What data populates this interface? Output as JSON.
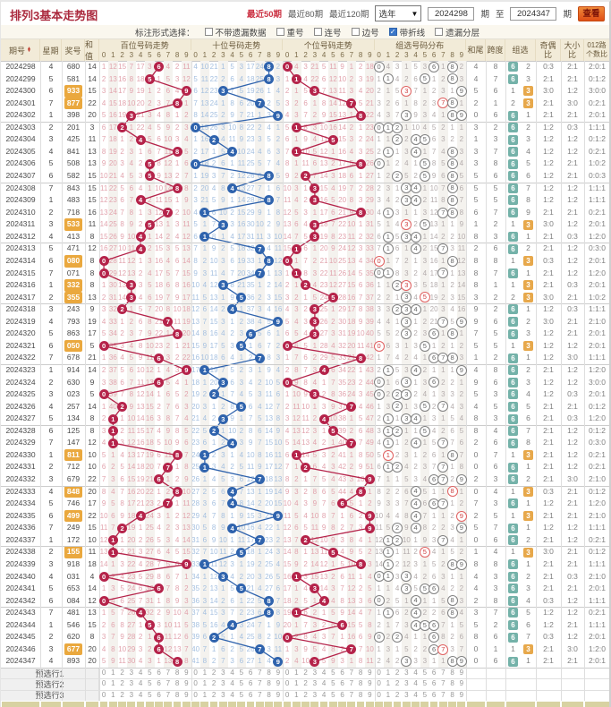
{
  "header": {
    "title": "排列3基本走势图",
    "links": [
      "最近50期",
      "最近80期",
      "最近120期"
    ],
    "year_select": "选年",
    "from_issue": "2024298",
    "to_issue": "2024347",
    "issue_suffix": "期",
    "to_label": "至",
    "submit_label": "查看"
  },
  "filter": {
    "label": "标注形式选择：",
    "options": [
      {
        "label": "不带遗漏数据",
        "checked": false
      },
      {
        "label": "重号",
        "checked": false
      },
      {
        "label": "连号",
        "checked": false
      },
      {
        "label": "边号",
        "checked": false
      },
      {
        "label": "带折线",
        "checked": true
      },
      {
        "label": "遗漏分层",
        "checked": false
      }
    ]
  },
  "table": {
    "left_headers": [
      "期号",
      "星期",
      "奖号",
      "和值"
    ],
    "right_headers": [
      "和尾",
      "跨度",
      "组选",
      "奇偶比",
      "大小比",
      "012路个数比"
    ],
    "group6_badge": "6",
    "group3_badge": "3",
    "preselect_labels": [
      "预选行1",
      "预选行2",
      "预选行3"
    ]
  },
  "chart_data": {
    "type": "table",
    "title": "排列3基本走势图",
    "zones": [
      "百位号码走势",
      "十位号码走势",
      "个位号码走势",
      "组选号码分布"
    ],
    "digit_columns": [
      0,
      1,
      2,
      3,
      4,
      5,
      6,
      7,
      8,
      9
    ],
    "initial_miss": {
      "hundreds": [
        0,
        11,
        14,
        6,
        16,
        2,
        0,
        3,
        1,
        10
      ],
      "tens": [
        3,
        9,
        20,
        0,
        4,
        2,
        16,
        23,
        0,
        1
      ],
      "units": [
        0,
        3,
        2,
        20,
        4,
        10,
        8,
        0,
        1,
        17
      ],
      "group": [
        0,
        3,
        2,
        0,
        4,
        2,
        0,
        0,
        0,
        1
      ],
      "group6": 0,
      "group3": 1
    },
    "rows": [
      {
        "issue": "2024298",
        "week": "4",
        "number": "680",
        "sum": 14
      },
      {
        "issue": "2024299",
        "week": "5",
        "number": "581",
        "sum": 14
      },
      {
        "issue": "2024300",
        "week": "6",
        "number": "933",
        "sum": 15
      },
      {
        "issue": "2024301",
        "week": "7",
        "number": "877",
        "sum": 22
      },
      {
        "issue": "2024302",
        "week": "1",
        "number": "398",
        "sum": 20
      },
      {
        "issue": "2024303",
        "week": "2",
        "number": "201",
        "sum": 3
      },
      {
        "issue": "2024304",
        "week": "3",
        "number": "425",
        "sum": 11
      },
      {
        "issue": "2024305",
        "week": "4",
        "number": "841",
        "sum": 13
      },
      {
        "issue": "2024306",
        "week": "5",
        "number": "508",
        "sum": 13
      },
      {
        "issue": "2024307",
        "week": "6",
        "number": "582",
        "sum": 15
      },
      {
        "issue": "2024308",
        "week": "7",
        "number": "843",
        "sum": 15
      },
      {
        "issue": "2024309",
        "week": "1",
        "number": "483",
        "sum": 15
      },
      {
        "issue": "2024310",
        "week": "2",
        "number": "718",
        "sum": 16
      },
      {
        "issue": "2024311",
        "week": "3",
        "number": "533",
        "sum": 11
      },
      {
        "issue": "2024312",
        "week": "4",
        "number": "413",
        "sum": 8
      },
      {
        "issue": "2024313",
        "week": "5",
        "number": "471",
        "sum": 12
      },
      {
        "issue": "2024314",
        "week": "6",
        "number": "080",
        "sum": 8
      },
      {
        "issue": "2024315",
        "week": "7",
        "number": "071",
        "sum": 8
      },
      {
        "issue": "2024316",
        "week": "1",
        "number": "332",
        "sum": 8
      },
      {
        "issue": "2024317",
        "week": "2",
        "number": "355",
        "sum": 13
      },
      {
        "issue": "2024318",
        "week": "3",
        "number": "243",
        "sum": 9
      },
      {
        "issue": "2024319",
        "week": "4",
        "number": "793",
        "sum": 19
      },
      {
        "issue": "2024320",
        "week": "5",
        "number": "863",
        "sum": 17
      },
      {
        "issue": "2024321",
        "week": "6",
        "number": "050",
        "sum": 5
      },
      {
        "issue": "2024322",
        "week": "7",
        "number": "678",
        "sum": 21
      },
      {
        "issue": "2024323",
        "week": "1",
        "number": "914",
        "sum": 14
      },
      {
        "issue": "2024324",
        "week": "2",
        "number": "630",
        "sum": 9
      },
      {
        "issue": "2024325",
        "week": "3",
        "number": "023",
        "sum": 5
      },
      {
        "issue": "2024326",
        "week": "4",
        "number": "257",
        "sum": 14
      },
      {
        "issue": "2024327",
        "week": "5",
        "number": "134",
        "sum": 8
      },
      {
        "issue": "2024328",
        "week": "6",
        "number": "125",
        "sum": 8
      },
      {
        "issue": "2024329",
        "week": "7",
        "number": "147",
        "sum": 12
      },
      {
        "issue": "2024330",
        "week": "1",
        "number": "811",
        "sum": 10
      },
      {
        "issue": "2024331",
        "week": "2",
        "number": "712",
        "sum": 10
      },
      {
        "issue": "2024332",
        "week": "3",
        "number": "679",
        "sum": 22
      },
      {
        "issue": "2024333",
        "week": "4",
        "number": "848",
        "sum": 20
      },
      {
        "issue": "2024334",
        "week": "5",
        "number": "746",
        "sum": 17
      },
      {
        "issue": "2024335",
        "week": "6",
        "number": "499",
        "sum": 22
      },
      {
        "issue": "2024336",
        "week": "7",
        "number": "249",
        "sum": 15
      },
      {
        "issue": "2024337",
        "week": "1",
        "number": "172",
        "sum": 10
      },
      {
        "issue": "2024338",
        "week": "2",
        "number": "155",
        "sum": 11
      },
      {
        "issue": "2024339",
        "week": "3",
        "number": "918",
        "sum": 18
      },
      {
        "issue": "2024340",
        "week": "4",
        "number": "031",
        "sum": 4
      },
      {
        "issue": "2024341",
        "week": "5",
        "number": "653",
        "sum": 14
      },
      {
        "issue": "2024342",
        "week": "6",
        "number": "084",
        "sum": 12
      },
      {
        "issue": "2024343",
        "week": "7",
        "number": "481",
        "sum": 13
      },
      {
        "issue": "2024344",
        "week": "1",
        "number": "546",
        "sum": 15
      },
      {
        "issue": "2024345",
        "week": "2",
        "number": "620",
        "sum": 8
      },
      {
        "issue": "2024346",
        "week": "3",
        "number": "677",
        "sum": 20
      },
      {
        "issue": "2024347",
        "week": "4",
        "number": "893",
        "sum": 20
      }
    ],
    "colors": {
      "hundreds_ball": "#b5234a",
      "tens_ball": "#2f63ad",
      "units_ball": "#b5234a",
      "miss_red": "#e2a3ad",
      "miss_blue": "#a5c0e0",
      "miss_gray": "#b4acac",
      "group6_badge": "#74b2a9",
      "group3_badge": "#e7a84b",
      "highlight_number_bg": "#eaa83e"
    }
  }
}
